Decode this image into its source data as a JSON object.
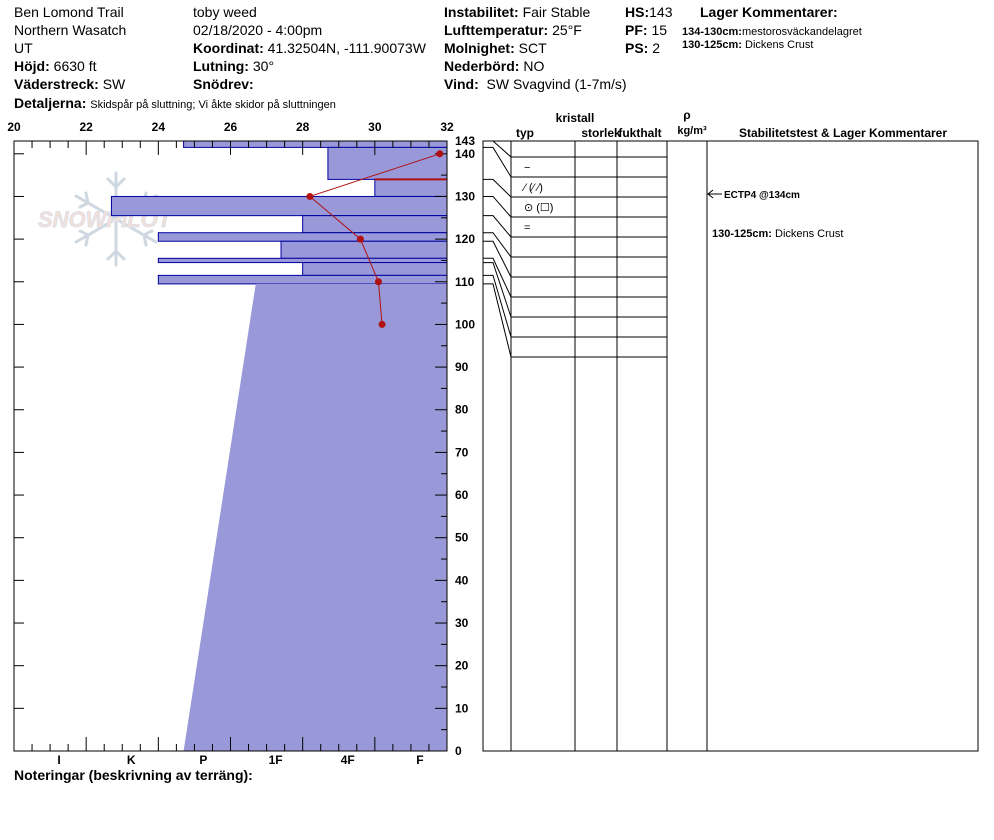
{
  "header": {
    "location": "Ben Lomond Trail",
    "range": "Northern Wasatch",
    "state": "UT",
    "elevation_label": "Höjd:",
    "elevation": "6630 ft",
    "aspect_label": "Väderstreck:",
    "aspect": "SW",
    "details_label": "Detaljerna:",
    "details": "Skidspår på sluttning;  Vi åkte skidor på sluttningen",
    "observer": "toby weed",
    "datetime": "02/18/2020 - 4:00pm",
    "coord_label": "Koordinat:",
    "coord": "41.32504N, -111.90073W",
    "slope_label": "Lutning:",
    "slope": "30°",
    "snowdrift_label": "Snödrev:",
    "snowdrift": "",
    "stability_label": "Instabilitet:",
    "stability": "Fair Stable",
    "airtemp_label": "Lufttemperatur:",
    "airtemp": "25°F",
    "sky_label": "Molnighet:",
    "sky": "SCT",
    "precip_label": "Nederbörd:",
    "precip": "NO",
    "wind_label": "Vind:",
    "wind": "SW  Svagvind (1-7m/s)",
    "hs_label": "HS:",
    "hs": "143",
    "pf_label": "PF:",
    "pf": "15",
    "ps_label": "PS:",
    "ps": "2",
    "layer_comments_title": "Lager Kommentarer:",
    "layer_comments": [
      {
        "range": "134-130cm:",
        "text": "mestorosväckandelagret"
      },
      {
        "range": "130-125cm:",
        "text": "Dickens Crust"
      }
    ],
    "notes_label": "Noteringar (beskrivning av terräng):"
  },
  "logo_text": "SNOWPILOT",
  "chart_data": {
    "type": "snow-profile",
    "colors": {
      "hardness": "#9999d9",
      "hardness_edge": "#0000a0",
      "temp": "#b01010",
      "lines": "#000000"
    },
    "temp_axis": {
      "min": 20,
      "max": 32,
      "ticks": [
        20,
        22,
        24,
        26,
        28,
        30,
        32
      ]
    },
    "depth_axis": {
      "min": 0,
      "max": 143,
      "ticks": [
        0,
        10,
        20,
        30,
        40,
        50,
        60,
        70,
        80,
        90,
        100,
        110,
        120,
        130,
        140
      ],
      "top_label": "143"
    },
    "hardness_axis": {
      "labels": [
        "I",
        "K",
        "P",
        "1F",
        "4F",
        "F"
      ],
      "positions": [
        21.25,
        23.25,
        25.25,
        27.25,
        29.25,
        31.25
      ]
    },
    "hardness_profile": [
      {
        "top": 143,
        "bottom": 141.5,
        "hardness_temp": 24.7
      },
      {
        "top": 141.5,
        "bottom": 134,
        "hardness_temp": 28.7
      },
      {
        "top": 134,
        "bottom": 130,
        "hardness_temp": 30.0
      },
      {
        "top": 130,
        "bottom": 125.5,
        "hardness_temp": 22.7
      },
      {
        "top": 125.5,
        "bottom": 121.5,
        "hardness_temp": 28.0
      },
      {
        "top": 121.5,
        "bottom": 119.5,
        "hardness_temp": 24.0
      },
      {
        "top": 119.5,
        "bottom": 115.5,
        "hardness_temp": 27.4
      },
      {
        "top": 115.5,
        "bottom": 114.5,
        "hardness_temp": 24.0
      },
      {
        "top": 114.5,
        "bottom": 111.5,
        "hardness_temp": 28.0
      },
      {
        "top": 111.5,
        "bottom": 109.5,
        "hardness_temp": 24.0
      },
      {
        "top": 109.5,
        "bottom": 0,
        "hardness_temp": 26.7,
        "hardness_temp_bottom": 24.7
      }
    ],
    "weak_layer_line": {
      "depth": 134,
      "temp_from": 30.0,
      "temp_to": 32
    },
    "temperature_profile": [
      {
        "depth": 140,
        "temp": 31.8
      },
      {
        "depth": 130,
        "temp": 28.2
      },
      {
        "depth": 120,
        "temp": 29.6
      },
      {
        "depth": 110,
        "temp": 30.1
      },
      {
        "depth": 100,
        "temp": 30.2
      }
    ],
    "table_headers": {
      "typ": "typ",
      "kristall": "kristall",
      "storlek": "storlek",
      "fukthalt": "fukthalt",
      "rho": "ρ",
      "rho_unit": "kg/m³",
      "stability": "Stabilitetstest & Lager Kommentarer"
    },
    "grain_rows": [
      "−",
      "⁄ (⁄ ⁄)",
      "⊙ (☐)",
      "="
    ],
    "layer_boundaries": [
      143,
      141.5,
      134,
      130,
      125.5,
      121.5,
      119.5,
      115.5,
      114.5,
      111.5,
      109.5
    ],
    "stability_tests": [
      {
        "label": "ECTP4 @134cm",
        "depth": 134
      }
    ],
    "table_comments": [
      {
        "label": "130-125cm:",
        "text": "Dickens Crust"
      }
    ]
  }
}
